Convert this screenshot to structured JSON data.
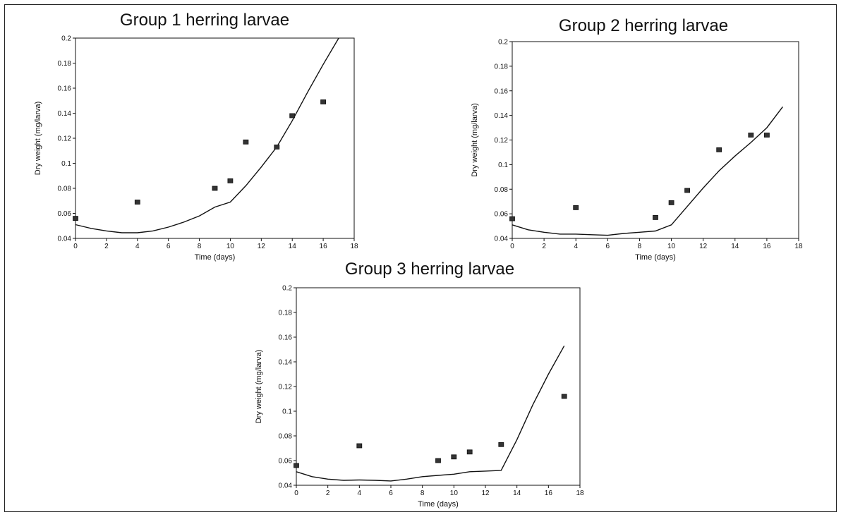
{
  "chart_data": [
    {
      "type": "scatter",
      "title": "Group 1 herring larvae",
      "xlabel": "Time (days)",
      "ylabel": "Dry weight (mg/larva)",
      "xlim": [
        0,
        18
      ],
      "ylim": [
        0.04,
        0.2
      ],
      "x_ticks": [
        "0",
        "2",
        "4",
        "6",
        "8",
        "10",
        "12",
        "14",
        "16",
        "18"
      ],
      "y_ticks": [
        "0.04",
        "0.06",
        "0.08",
        "0.1",
        "0.12",
        "0.14",
        "0.16",
        "0.18",
        "0.2"
      ],
      "grid": false,
      "series": [
        {
          "kind": "line",
          "x": [
            0,
            1,
            2,
            3,
            4,
            5,
            6,
            7,
            8,
            9,
            10,
            11,
            12,
            13,
            14,
            15,
            16,
            17
          ],
          "y": [
            0.051,
            0.048,
            0.046,
            0.0445,
            0.0445,
            0.046,
            0.049,
            0.053,
            0.058,
            0.065,
            0.069,
            0.082,
            0.097,
            0.113,
            0.134,
            0.157,
            0.179,
            0.2
          ]
        },
        {
          "kind": "points",
          "x": [
            0,
            4,
            9,
            10,
            11,
            13,
            14,
            16
          ],
          "y": [
            0.056,
            0.069,
            0.08,
            0.086,
            0.117,
            0.113,
            0.138,
            0.149
          ]
        }
      ]
    },
    {
      "type": "scatter",
      "title": "Group 2 herring larvae",
      "xlabel": "Time (days)",
      "ylabel": "Dry weight (mg/larva)",
      "xlim": [
        0,
        18
      ],
      "ylim": [
        0.04,
        0.2
      ],
      "x_ticks": [
        "0",
        "2",
        "4",
        "6",
        "8",
        "10",
        "12",
        "14",
        "16",
        "18"
      ],
      "y_ticks": [
        "0.04",
        "0.06",
        "0.08",
        "0.1",
        "0.12",
        "0.14",
        "0.16",
        "0.18",
        "0.2"
      ],
      "grid": false,
      "series": [
        {
          "kind": "line",
          "x": [
            0,
            1,
            2,
            3,
            4,
            5,
            6,
            7,
            8,
            9,
            10,
            11,
            12,
            13,
            14,
            15,
            16,
            17
          ],
          "y": [
            0.051,
            0.047,
            0.045,
            0.0435,
            0.0435,
            0.043,
            0.0425,
            0.044,
            0.045,
            0.046,
            0.051,
            0.066,
            0.081,
            0.095,
            0.107,
            0.118,
            0.13,
            0.147
          ]
        },
        {
          "kind": "points",
          "x": [
            0,
            4,
            9,
            10,
            11,
            13,
            15,
            16
          ],
          "y": [
            0.056,
            0.065,
            0.057,
            0.069,
            0.079,
            0.112,
            0.124,
            0.124
          ]
        }
      ]
    },
    {
      "type": "scatter",
      "title": "Group 3 herring larvae",
      "xlabel": "Time (days)",
      "ylabel": "Dry weight (mg/larva)",
      "xlim": [
        0,
        18
      ],
      "ylim": [
        0.04,
        0.2
      ],
      "x_ticks": [
        "0",
        "2",
        "4",
        "6",
        "8",
        "10",
        "12",
        "14",
        "16",
        "18"
      ],
      "y_ticks": [
        "0.04",
        "0.06",
        "0.08",
        "0.1",
        "0.12",
        "0.14",
        "0.16",
        "0.18",
        "0.2"
      ],
      "grid": false,
      "series": [
        {
          "kind": "line",
          "x": [
            0,
            1,
            2,
            3,
            4,
            5,
            6,
            7,
            8,
            9,
            10,
            11,
            12,
            13,
            14,
            15,
            16,
            17
          ],
          "y": [
            0.051,
            0.047,
            0.045,
            0.044,
            0.0443,
            0.044,
            0.0435,
            0.045,
            0.047,
            0.048,
            0.049,
            0.051,
            0.0515,
            0.052,
            0.077,
            0.105,
            0.13,
            0.153
          ]
        },
        {
          "kind": "points",
          "x": [
            0,
            4,
            9,
            10,
            11,
            13,
            17
          ],
          "y": [
            0.056,
            0.072,
            0.06,
            0.063,
            0.067,
            0.073,
            0.112
          ]
        }
      ]
    }
  ]
}
